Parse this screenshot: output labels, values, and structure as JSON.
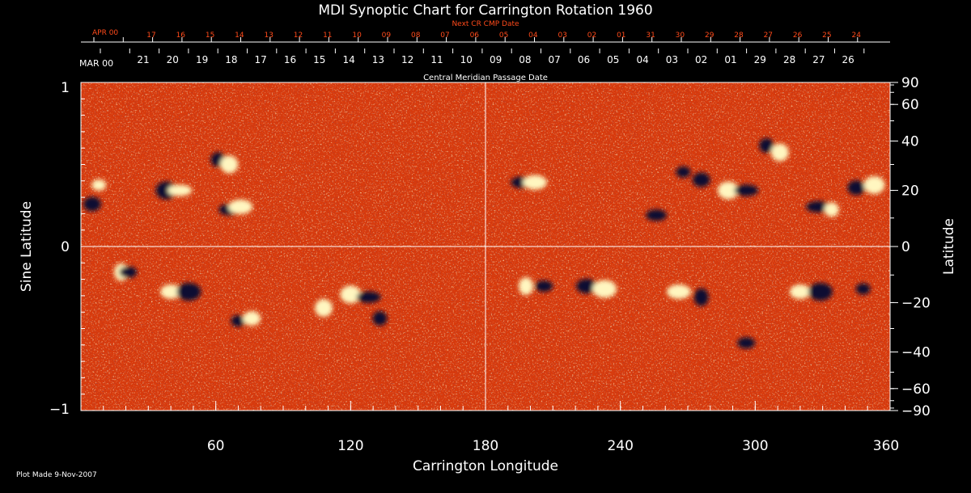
{
  "chart_data": {
    "type": "heatmap",
    "title": "MDI Synoptic Chart for Carrington Rotation 1960",
    "xlabel": "Carrington Longitude",
    "ylabel_left": "Sine Latitude",
    "ylabel_right": "Latitude",
    "xlim": [
      0,
      360
    ],
    "ylim": [
      -1,
      1
    ],
    "x_ticks": [
      60,
      120,
      180,
      240,
      300,
      360
    ],
    "y_ticks_left": [
      {
        "value": 1,
        "label": "1"
      },
      {
        "value": 0,
        "label": "0"
      },
      {
        "value": -1,
        "label": "−1"
      }
    ],
    "y_ticks_right": [
      {
        "lat": 90,
        "label": "90"
      },
      {
        "lat": 60,
        "label": "60"
      },
      {
        "lat": 40,
        "label": "40"
      },
      {
        "lat": 20,
        "label": "20"
      },
      {
        "lat": 0,
        "label": "0"
      },
      {
        "lat": -20,
        "label": "−20"
      },
      {
        "lat": -40,
        "label": "−40"
      },
      {
        "lat": -60,
        "label": "−60"
      },
      {
        "lat": -90,
        "label": "−90"
      }
    ],
    "cmp_axis": {
      "label": "Central Meridian Passage Date",
      "month_label": "MAR 00",
      "dates": [
        "21",
        "20",
        "19",
        "18",
        "17",
        "16",
        "15",
        "14",
        "13",
        "12",
        "11",
        "10",
        "09",
        "08",
        "07",
        "06",
        "05",
        "04",
        "03",
        "02",
        "01",
        "29",
        "28",
        "27",
        "26"
      ]
    },
    "next_cr_axis": {
      "label": "Next CR CMP Date",
      "month_label": "APR 00",
      "dates": [
        "17",
        "16",
        "15",
        "14",
        "13",
        "12",
        "11",
        "10",
        "09",
        "08",
        "07",
        "06",
        "05",
        "04",
        "03",
        "02",
        "01",
        "31",
        "30",
        "29",
        "28",
        "27",
        "26",
        "25",
        "24"
      ]
    },
    "colors": {
      "background": "#d83a0c",
      "positive": "#fff6c0",
      "negative": "#0a0a30",
      "text_primary": "#ffffff",
      "text_secondary": "#ff4a1a"
    },
    "active_regions": [
      {
        "lon": 8,
        "lat": 22,
        "polarity": "positive"
      },
      {
        "lon": 5,
        "lat": 15,
        "polarity": "negative"
      },
      {
        "lon": 38,
        "lat": 20,
        "polarity": "negative"
      },
      {
        "lon": 44,
        "lat": 20,
        "polarity": "positive"
      },
      {
        "lon": 61,
        "lat": 32,
        "polarity": "negative"
      },
      {
        "lon": 66,
        "lat": 30,
        "polarity": "positive"
      },
      {
        "lon": 66,
        "lat": 13,
        "polarity": "negative"
      },
      {
        "lon": 71,
        "lat": 14,
        "polarity": "positive"
      },
      {
        "lon": 18,
        "lat": -9,
        "polarity": "positive"
      },
      {
        "lon": 21,
        "lat": -9,
        "polarity": "negative"
      },
      {
        "lon": 40,
        "lat": -16,
        "polarity": "positive"
      },
      {
        "lon": 48,
        "lat": -16,
        "polarity": "negative"
      },
      {
        "lon": 70,
        "lat": -27,
        "polarity": "negative"
      },
      {
        "lon": 76,
        "lat": -26,
        "polarity": "positive"
      },
      {
        "lon": 120,
        "lat": -17,
        "polarity": "positive"
      },
      {
        "lon": 128,
        "lat": -18,
        "polarity": "negative"
      },
      {
        "lon": 133,
        "lat": -26,
        "polarity": "negative"
      },
      {
        "lon": 108,
        "lat": -22,
        "polarity": "positive"
      },
      {
        "lon": 196,
        "lat": 23,
        "polarity": "negative"
      },
      {
        "lon": 202,
        "lat": 23,
        "polarity": "positive"
      },
      {
        "lon": 198,
        "lat": -14,
        "polarity": "positive"
      },
      {
        "lon": 206,
        "lat": -14,
        "polarity": "negative"
      },
      {
        "lon": 225,
        "lat": -14,
        "polarity": "negative"
      },
      {
        "lon": 233,
        "lat": -15,
        "polarity": "positive"
      },
      {
        "lon": 268,
        "lat": 27,
        "polarity": "negative"
      },
      {
        "lon": 276,
        "lat": 24,
        "polarity": "negative"
      },
      {
        "lon": 288,
        "lat": 20,
        "polarity": "positive"
      },
      {
        "lon": 296,
        "lat": 20,
        "polarity": "negative"
      },
      {
        "lon": 305,
        "lat": 38,
        "polarity": "negative"
      },
      {
        "lon": 311,
        "lat": 35,
        "polarity": "positive"
      },
      {
        "lon": 256,
        "lat": 11,
        "polarity": "negative"
      },
      {
        "lon": 266,
        "lat": -16,
        "polarity": "positive"
      },
      {
        "lon": 276,
        "lat": -18,
        "polarity": "negative"
      },
      {
        "lon": 296,
        "lat": -36,
        "polarity": "negative"
      },
      {
        "lon": 320,
        "lat": -16,
        "polarity": "positive"
      },
      {
        "lon": 329,
        "lat": -16,
        "polarity": "negative"
      },
      {
        "lon": 348,
        "lat": -15,
        "polarity": "negative"
      },
      {
        "lon": 345,
        "lat": 21,
        "polarity": "negative"
      },
      {
        "lon": 353,
        "lat": 22,
        "polarity": "positive"
      },
      {
        "lon": 328,
        "lat": 14,
        "polarity": "negative"
      },
      {
        "lon": 334,
        "lat": 13,
        "polarity": "positive"
      }
    ]
  },
  "footer": {
    "plot_made": "Plot Made  9-Nov-2007"
  }
}
